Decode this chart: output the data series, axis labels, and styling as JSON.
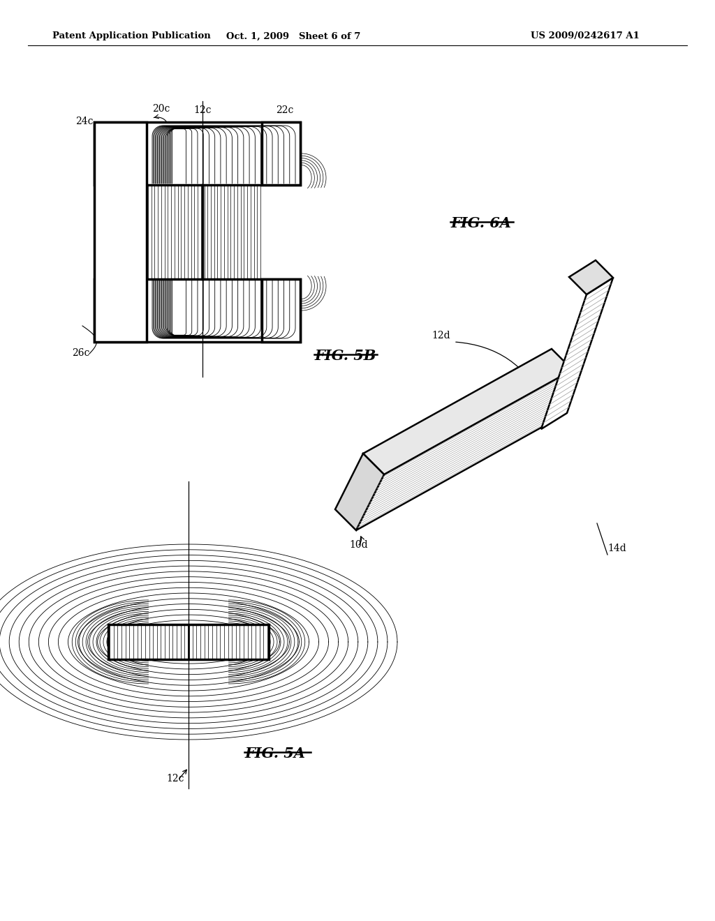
{
  "bg_color": "#ffffff",
  "header_left": "Patent Application Publication",
  "header_mid": "Oct. 1, 2009   Sheet 6 of 7",
  "header_right": "US 2009/0242617 A1",
  "fig5a_label": "FIG. 5A",
  "fig5b_label": "FIG. 5B",
  "fig6a_label": "FIG. 6A",
  "label_24c": "24c",
  "label_20c": "20c",
  "label_12c_top": "12c",
  "label_22c": "22c",
  "label_26c": "26c",
  "label_12c_bot": "12c",
  "label_10d": "10d",
  "label_12d": "12d",
  "label_14d": "14d",
  "line_color": "#000000"
}
